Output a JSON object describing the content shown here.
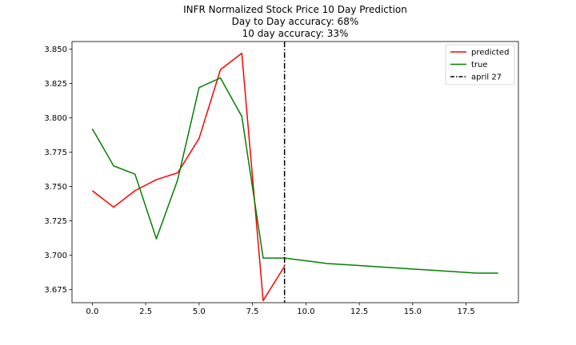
{
  "chart_data": {
    "type": "line",
    "title": [
      "INFR Normalized Stock Price 10 Day Prediction",
      "Day to Day accuracy: 68%",
      "10 day accuracy: 33%"
    ],
    "xlabel": "",
    "ylabel": "",
    "xlim": [
      -0.95,
      19.95
    ],
    "ylim": [
      3.6655,
      3.8555
    ],
    "xticks": [
      0.0,
      2.5,
      5.0,
      7.5,
      10.0,
      12.5,
      15.0,
      17.5
    ],
    "xtick_labels": [
      "0.0",
      "2.5",
      "5.0",
      "7.5",
      "10.0",
      "12.5",
      "15.0",
      "17.5"
    ],
    "yticks": [
      3.675,
      3.7,
      3.725,
      3.75,
      3.775,
      3.8,
      3.825,
      3.85
    ],
    "ytick_labels": [
      "3.675",
      "3.700",
      "3.725",
      "3.750",
      "3.775",
      "3.800",
      "3.825",
      "3.850"
    ],
    "grid": false,
    "legend_position": "top-right",
    "series": [
      {
        "name": "predicted",
        "color": "#ff0000",
        "x": [
          0,
          1,
          2,
          3,
          4,
          5,
          6,
          7,
          8,
          9
        ],
        "y": [
          3.747,
          3.735,
          3.747,
          3.755,
          3.76,
          3.785,
          3.835,
          3.847,
          3.667,
          3.692
        ]
      },
      {
        "name": "true",
        "color": "#008000",
        "x": [
          0,
          1,
          2,
          3,
          4,
          5,
          6,
          7,
          8,
          9,
          10,
          11,
          12,
          13,
          14,
          15,
          16,
          17,
          18,
          19
        ],
        "y": [
          3.792,
          3.765,
          3.759,
          3.712,
          3.755,
          3.822,
          3.829,
          3.801,
          3.698,
          3.698,
          3.696,
          3.694,
          3.693,
          3.692,
          3.691,
          3.69,
          3.689,
          3.688,
          3.687,
          3.687
        ]
      }
    ],
    "vlines": [
      {
        "name": "april 27",
        "x": 9,
        "color": "#000000",
        "style": "dashdot"
      }
    ]
  }
}
